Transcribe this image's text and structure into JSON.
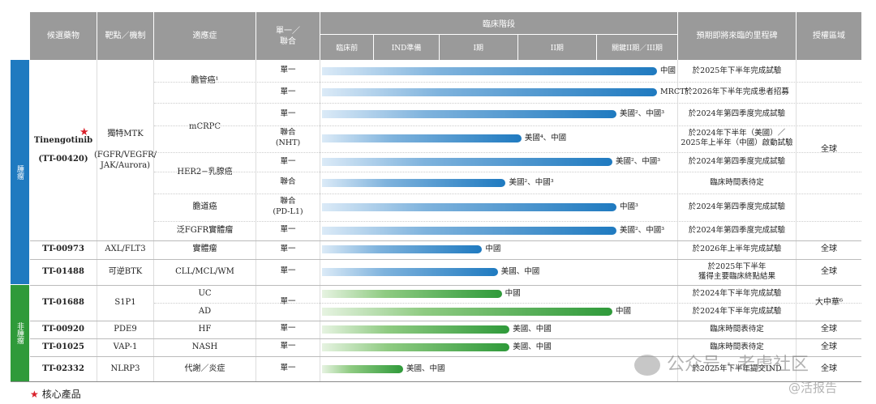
{
  "headers": {
    "candidate": "候選藥物",
    "target": "靶點／機制",
    "indication": "適應症",
    "mono_combo": "單一／\n聯合",
    "clinical_stage": "臨床階段",
    "milestone": "預期即將來臨的里程碑",
    "rights": "授權區域",
    "stages": [
      "臨床前",
      "IND準備",
      "I期",
      "II期",
      "關鍵II期／III期"
    ]
  },
  "sections": {
    "oncology": "腫瘤",
    "non_oncology": "非腫瘤"
  },
  "drugs": {
    "tt00420": {
      "name": "Tinengotinib\n(TT-00420)",
      "star": "★",
      "target": "獨特MTK\n\n(FGFR/VEGFR/\nJAK/Aurora)",
      "rights": "全球"
    },
    "tt00973": {
      "name": "TT-00973",
      "target": "AXL/FLT3",
      "rights": "全球"
    },
    "tt01488": {
      "name": "TT-01488",
      "target": "可逆BTK",
      "rights": "全球"
    },
    "tt01688": {
      "name": "TT-01688",
      "target": "S1P1",
      "rights": "大中華⁶"
    },
    "tt00920": {
      "name": "TT-00920",
      "target": "PDE9",
      "rights": "全球"
    },
    "tt01025": {
      "name": "TT-01025",
      "target": "VAP-1",
      "rights": "全球"
    },
    "tt02332": {
      "name": "TT-02332",
      "target": "NLRP3",
      "rights": "全球"
    }
  },
  "indications": {
    "cholangio": "膽管癌¹",
    "mcrpc": "mCRPC",
    "her2": "HER2−乳腺癌",
    "biliary": "膽道癌",
    "panfgfr": "泛FGFR實體瘤",
    "solid": "實體瘤",
    "cll": "CLL/MCL/WM",
    "uc": "UC",
    "ad": "AD",
    "hf": "HF",
    "nash": "NASH",
    "metab": "代謝／炎症"
  },
  "rows": [
    {
      "mode": "單一",
      "bar_end_stage": 4.75,
      "color": "blue",
      "label": "中國",
      "milestone": "於2025年下半年完成試驗"
    },
    {
      "mode": "單一",
      "bar_end_stage": 4.75,
      "color": "blue",
      "label": "MRCT⁵",
      "milestone": "於2026年下半年完成患者招募"
    },
    {
      "mode": "單一",
      "bar_end_stage": 4.25,
      "color": "blue",
      "label": "美國²、中國³",
      "milestone": "於2024年第四季度完成試驗"
    },
    {
      "mode": "聯合\n(NHT)",
      "bar_end_stage": 3.05,
      "color": "blue",
      "label": "美國⁴、中國",
      "milestone": "於2024年下半年（美國）／\n2025年上半年（中國）啟動試驗"
    },
    {
      "mode": "單一",
      "bar_end_stage": 4.2,
      "color": "blue",
      "label": "美國²、中國³",
      "milestone": "於2024年第四季度完成試驗"
    },
    {
      "mode": "聯合",
      "bar_end_stage": 2.85,
      "color": "blue",
      "label": "美國²、中國³",
      "milestone": "臨床時間表待定"
    },
    {
      "mode": "聯合\n(PD-L1)",
      "bar_end_stage": 4.25,
      "color": "blue",
      "label": "中國³",
      "milestone": "於2024年第四季度完成試驗"
    },
    {
      "mode": "單一",
      "bar_end_stage": 4.25,
      "color": "blue",
      "label": "美國²、中國³",
      "milestone": "於2024年第四季度完成試驗"
    },
    {
      "mode": "單一",
      "bar_end_stage": 2.55,
      "color": "blue",
      "label": "中國",
      "milestone": "於2026年上半年完成試驗"
    },
    {
      "mode": "單一",
      "bar_end_stage": 2.75,
      "color": "blue",
      "label": "美國、中國",
      "milestone": "於2025年下半年\n獲得主要臨床終點結果"
    },
    {
      "mode": "單一",
      "bar_end_stage": 2.8,
      "color": "green",
      "label": "中國",
      "milestone": "於2024年下半年完成試驗"
    },
    {
      "mode": "",
      "bar_end_stage": 4.2,
      "color": "green",
      "label": "中國",
      "milestone": "於2024年下半年完成試驗"
    },
    {
      "mode": "單一",
      "bar_end_stage": 2.9,
      "color": "green",
      "label": "美國、中國",
      "milestone": "臨床時間表待定"
    },
    {
      "mode": "單一",
      "bar_end_stage": 2.9,
      "color": "green",
      "label": "美國、中國",
      "milestone": "臨床時間表待定"
    },
    {
      "mode": "單一",
      "bar_end_stage": 1.45,
      "color": "green",
      "label": "美國、中國",
      "milestone": "於2025年下半年提交IND"
    }
  ],
  "footnote": {
    "star": "★",
    "text": "核心產品"
  },
  "watermark": {
    "text": "公众号 · 老虎社区",
    "sub": "@活报告"
  },
  "colors": {
    "blue": "#1f7ac0",
    "green": "#2f9a3a",
    "header": "#9a9a9a"
  }
}
